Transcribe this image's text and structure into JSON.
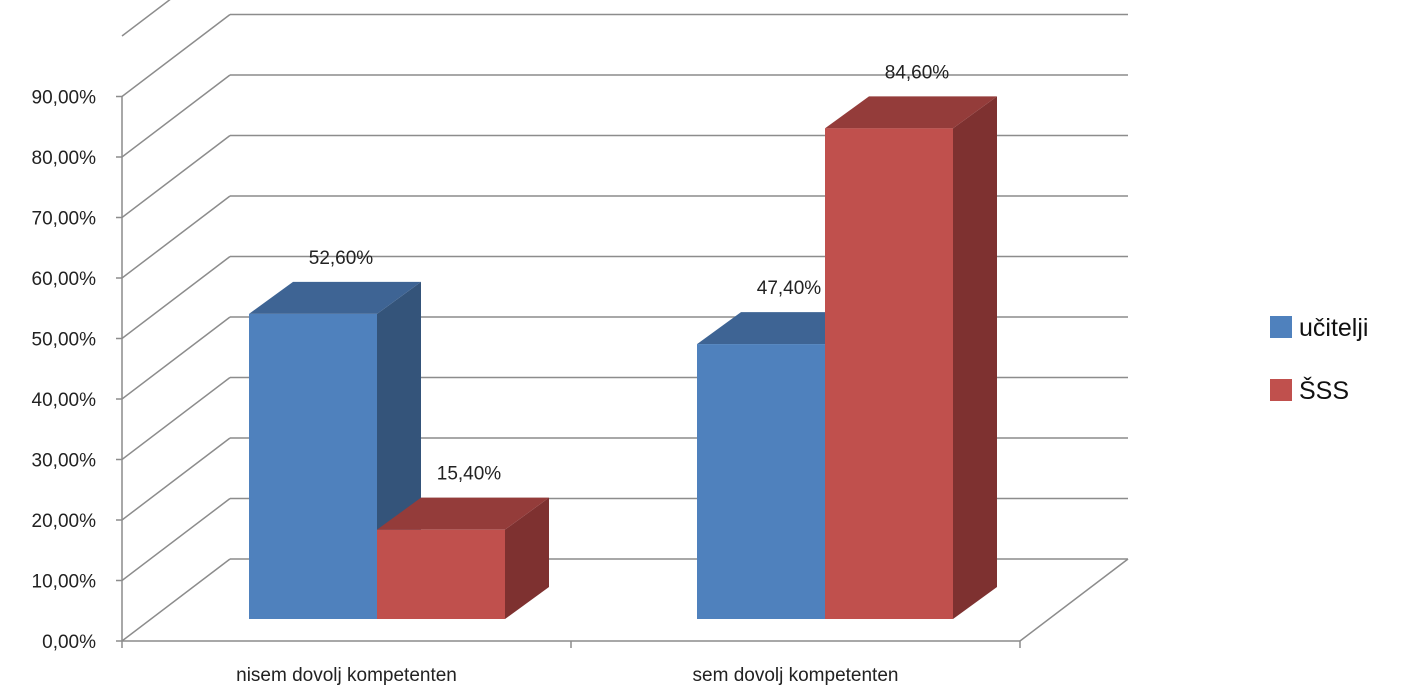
{
  "chart_data": {
    "type": "bar",
    "categories": [
      "nisem dovolj kompetenten",
      "sem dovolj kompetenten"
    ],
    "series": [
      {
        "name": "učitelji",
        "values": [
          52.6,
          47.4
        ],
        "labels": [
          "52,60%",
          "47,40%"
        ],
        "color": "#4F81BD",
        "side_color": "#34547A",
        "top_color": "#3E6494"
      },
      {
        "name": "ŠSS",
        "values": [
          15.4,
          84.6
        ],
        "labels": [
          "15,40%",
          "84,60%"
        ],
        "color": "#C0504D",
        "side_color": "#7E3130",
        "top_color": "#943C3A"
      }
    ],
    "y_ticks": [
      "0,00%",
      "10,00%",
      "20,00%",
      "30,00%",
      "40,00%",
      "50,00%",
      "60,00%",
      "70,00%",
      "80,00%",
      "90,00%"
    ],
    "ylim": [
      0,
      90
    ],
    "grid": true,
    "legend": "right",
    "title": "",
    "xlabel": "",
    "ylabel": ""
  }
}
